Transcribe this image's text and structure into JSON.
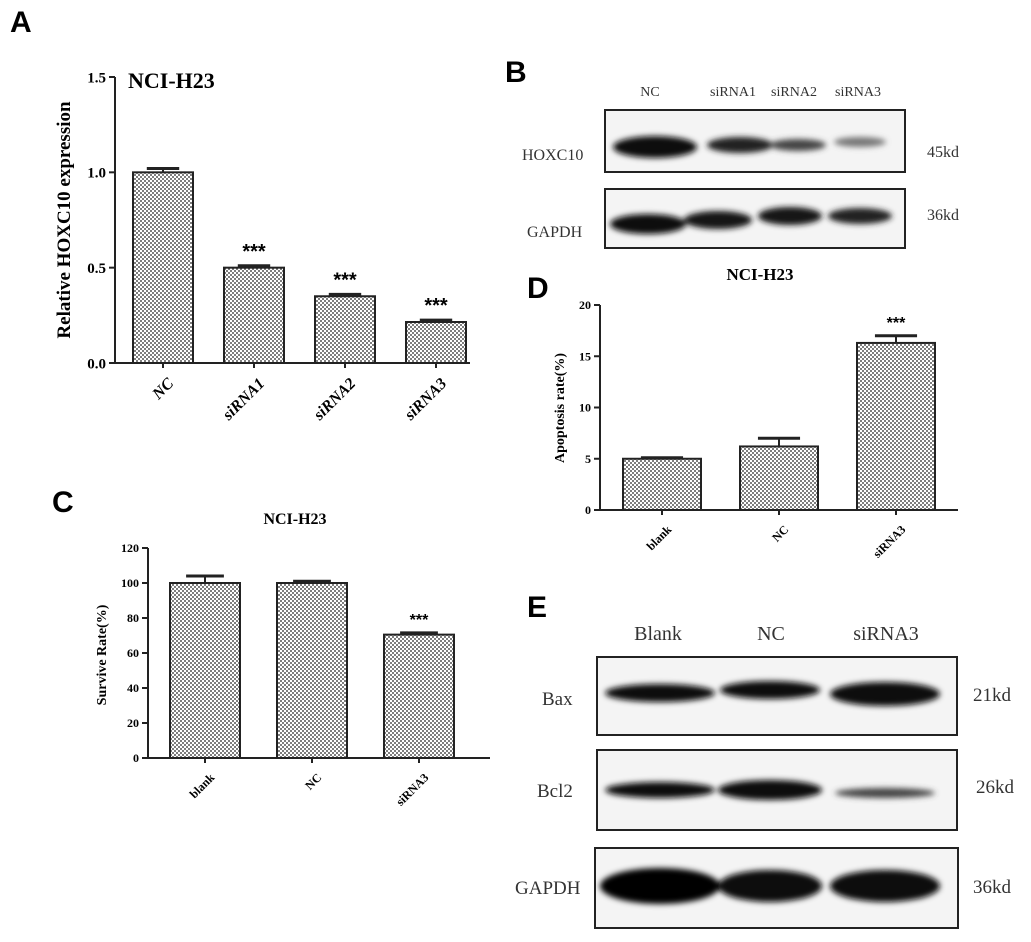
{
  "chart_data": [
    {
      "type": "bar",
      "panel": "A",
      "title": "NCI-H23",
      "y_label": "Relative HOXC10  expression",
      "categories": [
        "NC",
        "siRNA1",
        "siRNA2",
        "siRNA3"
      ],
      "values": [
        1.0,
        0.5,
        0.35,
        0.215
      ],
      "errors": [
        0.02,
        0.01,
        0.01,
        0.01
      ],
      "value_annotations": [
        null,
        "***",
        "***",
        "***"
      ],
      "color": "#555555",
      "ylim": [
        0,
        1.5
      ],
      "yticks": [
        {
          "value": 0,
          "label": "0.0"
        },
        0.5,
        {
          "value": 1,
          "label": "1.0"
        },
        1.5
      ]
    },
    {
      "type": "bar",
      "panel": "C",
      "title": "NCI-H23",
      "y_label": "Survive Rate(%)",
      "categories": [
        "blank",
        "NC",
        "siRNA3"
      ],
      "values": [
        100,
        100,
        70.5
      ],
      "errors": [
        4,
        1,
        1
      ],
      "value_annotations": [
        null,
        null,
        "***"
      ],
      "color": "#555555",
      "ylim": [
        0,
        120
      ],
      "yticks": [
        0,
        20,
        40,
        60,
        80,
        100,
        120
      ]
    },
    {
      "type": "bar",
      "panel": "D",
      "title": "NCI-H23",
      "y_label": "Apoptosis rate(%)",
      "categories": [
        "blank",
        "NC",
        "siRNA3"
      ],
      "values": [
        5.0,
        6.2,
        16.3
      ],
      "errors": [
        0.1,
        0.8,
        0.7
      ],
      "value_annotations": [
        null,
        null,
        "***"
      ],
      "color": "#555555",
      "ylim": [
        0,
        20
      ],
      "yticks": [
        0,
        5,
        10,
        15,
        20
      ]
    }
  ],
  "blots": [
    {
      "panel": "B",
      "lanes": [
        "NC",
        "siRNA1",
        "siRNA2",
        "siRNA3"
      ],
      "rows": [
        {
          "label": "HOXC10",
          "size": "45kd"
        },
        {
          "label": "GAPDH",
          "size": "36kd"
        }
      ]
    },
    {
      "panel": "E",
      "lanes": [
        "Blank",
        "NC",
        "siRNA3"
      ],
      "rows": [
        {
          "label": "Bax",
          "size": "21kd"
        },
        {
          "label": "Bcl2",
          "size": "26kd"
        },
        {
          "label": "GAPDH",
          "size": "36kd"
        }
      ]
    }
  ]
}
